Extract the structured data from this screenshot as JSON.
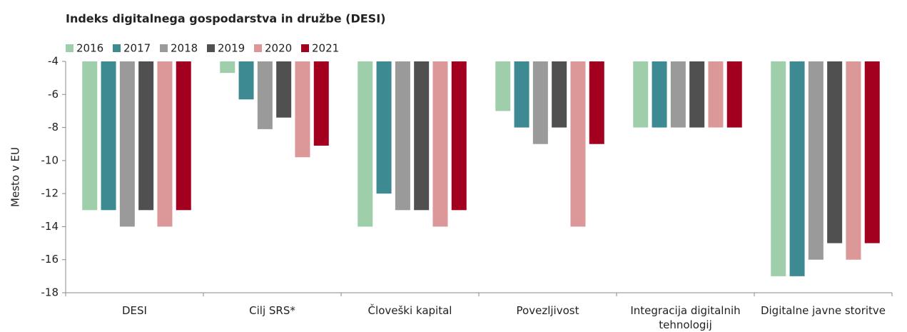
{
  "chart_data": {
    "type": "bar",
    "title": "Indeks digitalnega gospodarstva in družbe (DESI)",
    "y_label": "Mesto v EU",
    "categories": [
      "DESI",
      "Cilj SRS*",
      "Človeški kapital",
      "Povezljivost",
      "Integracija digitalnih tehnologij",
      "Digitalne javne storitve"
    ],
    "series": [
      {
        "name": "2016",
        "color": "#9fcfaa",
        "values": [
          -13,
          -4.7,
          -14,
          -7,
          -8,
          -17
        ]
      },
      {
        "name": "2017",
        "color": "#3e8a93",
        "values": [
          -13,
          -6.3,
          -12,
          -8,
          -8,
          -17
        ]
      },
      {
        "name": "2018",
        "color": "#9a9a9a",
        "values": [
          -14,
          -8.1,
          -13,
          -9,
          -8,
          -16
        ]
      },
      {
        "name": "2019",
        "color": "#505050",
        "values": [
          -13,
          -7.4,
          -13,
          -8,
          -8,
          -15
        ]
      },
      {
        "name": "2020",
        "color": "#dc9899",
        "values": [
          -14,
          -9.8,
          -14,
          -14,
          -8,
          -16
        ]
      },
      {
        "name": "2021",
        "color": "#a3001f",
        "values": [
          -13,
          -9.1,
          -13,
          -9,
          -8,
          -15
        ]
      }
    ],
    "ylim": [
      -18,
      -4
    ],
    "yticks": [
      -18,
      -16,
      -14,
      -12,
      -10,
      -8,
      -6,
      -4
    ],
    "grid": false,
    "legend": "top-left"
  }
}
